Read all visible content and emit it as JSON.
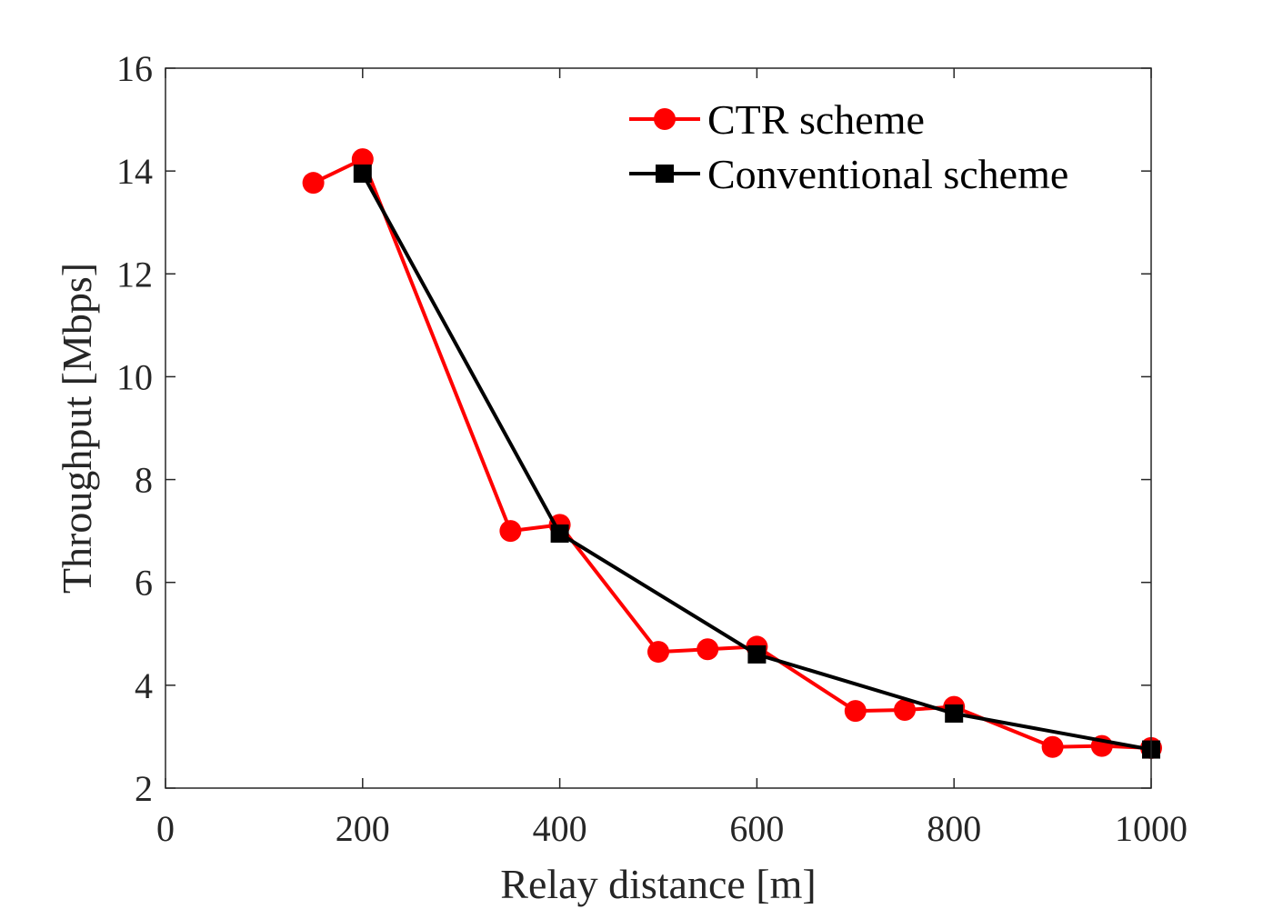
{
  "chart_data": {
    "type": "line",
    "xlabel": "Relay distance  [m]",
    "ylabel": "Throughput [Mbps]",
    "xlim": [
      0,
      1000
    ],
    "ylim": [
      2,
      16
    ],
    "xticks": [
      0,
      200,
      400,
      600,
      800,
      1000
    ],
    "yticks": [
      2,
      4,
      6,
      8,
      10,
      12,
      14,
      16
    ],
    "xtick_labels": [
      "0",
      "200",
      "400",
      "600",
      "800",
      "1000"
    ],
    "ytick_labels": [
      "2",
      "4",
      "6",
      "8",
      "10",
      "12",
      "14",
      "16"
    ],
    "grid": false,
    "legend_position": "top-right",
    "series": [
      {
        "name": "CTR scheme",
        "color": "#ff0000",
        "marker": "circle",
        "x": [
          150,
          200,
          350,
          400,
          500,
          550,
          600,
          700,
          750,
          800,
          900,
          950,
          1000
        ],
        "y": [
          13.77,
          14.23,
          7.0,
          7.12,
          4.65,
          4.7,
          4.75,
          3.5,
          3.52,
          3.58,
          2.8,
          2.82,
          2.78
        ]
      },
      {
        "name": "Conventional scheme",
        "color": "#000000",
        "marker": "square",
        "x": [
          200,
          400,
          600,
          800,
          1000
        ],
        "y": [
          13.95,
          6.95,
          4.6,
          3.45,
          2.75
        ]
      }
    ]
  }
}
